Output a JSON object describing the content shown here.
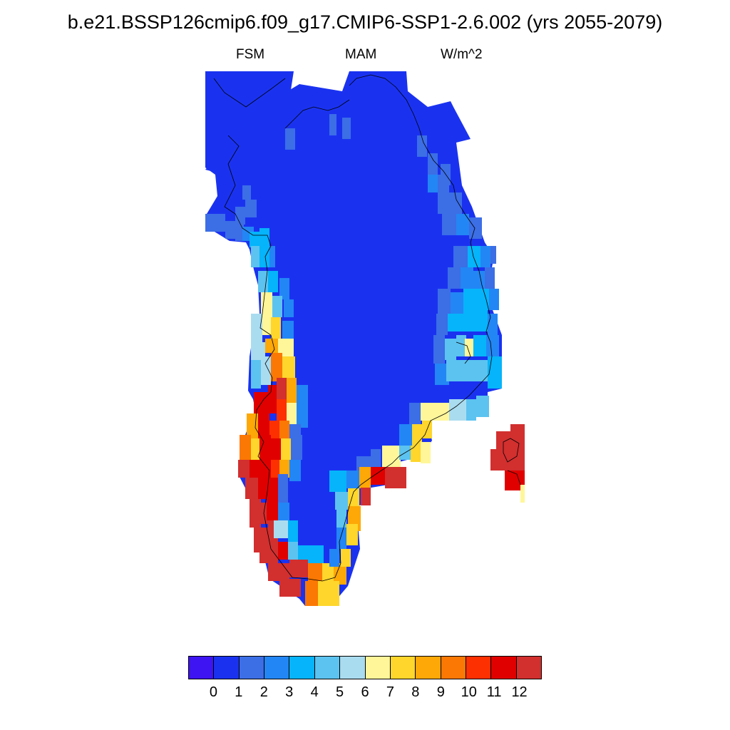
{
  "title": "b.e21.BSSP126cmip6.f09_g17.CMIP6-SSP1-2.6.002 (yrs 2055-2079)",
  "subtitle_left": "FSM",
  "subtitle_center": "MAM",
  "subtitle_right": "W/m^2",
  "map": {
    "region": "Greenland",
    "coastline_color": "#000000"
  },
  "colorbar": {
    "labels": [
      "0",
      "1",
      "2",
      "3",
      "4",
      "5",
      "6",
      "7",
      "8",
      "9",
      "10",
      "11",
      "12"
    ],
    "colors": [
      "#3e14f2",
      "#1a32f0",
      "#3c6ee6",
      "#2386f5",
      "#05b4fa",
      "#5cc3f0",
      "#aadcf0",
      "#fff69a",
      "#fed62c",
      "#fda806",
      "#fb7804",
      "#fc3000",
      "#e00000",
      "#d22f2f"
    ]
  }
}
